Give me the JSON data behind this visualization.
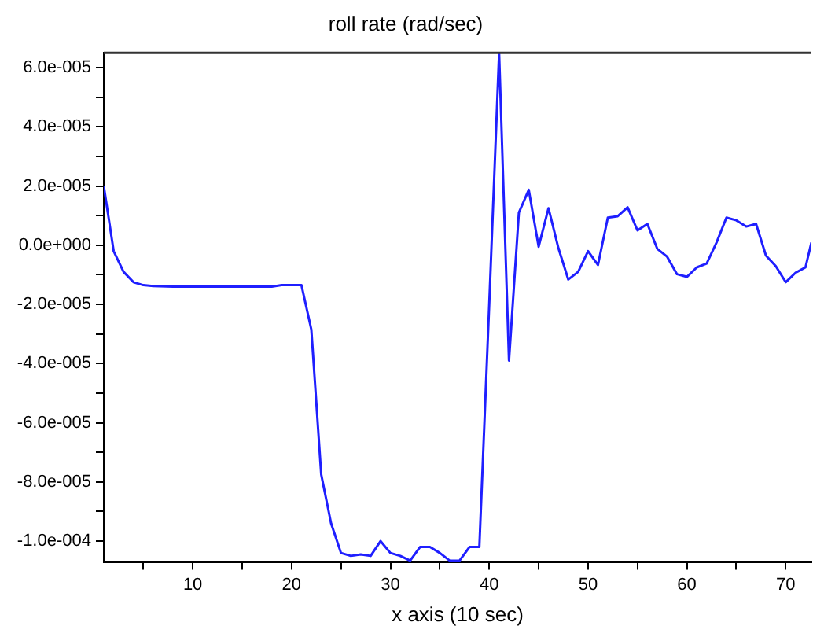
{
  "chart_data": {
    "type": "line",
    "title": "roll rate (rad/sec)",
    "xlabel": "x axis (10 sec)",
    "x": [
      1,
      2,
      3,
      4,
      5,
      6,
      8,
      10,
      12,
      14,
      16,
      18,
      19,
      20,
      21,
      22,
      23,
      24,
      25,
      26,
      27,
      28,
      29,
      30,
      31,
      32,
      33,
      34,
      35,
      36,
      37,
      38,
      39,
      40,
      41,
      42,
      43,
      44,
      45,
      46,
      47,
      48,
      49,
      50,
      51,
      52,
      53,
      54,
      55,
      56,
      57,
      58,
      59,
      60,
      61,
      62,
      63,
      64,
      65,
      66,
      67,
      68,
      69,
      70,
      71,
      72,
      72.6
    ],
    "series": [
      {
        "color": "#1f1fff",
        "values": [
          2e-05,
          -2e-06,
          -9e-06,
          -1.25e-05,
          -1.35e-05,
          -1.38e-05,
          -1.4e-05,
          -1.4e-05,
          -1.4e-05,
          -1.4e-05,
          -1.4e-05,
          -1.4e-05,
          -1.35e-05,
          -1.35e-05,
          -1.35e-05,
          -2.85e-05,
          -7.75e-05,
          -9.4e-05,
          -0.000104,
          -0.000105,
          -0.0001045,
          -0.000105,
          -0.0001,
          -0.000104,
          -0.000105,
          -0.0001066,
          -0.000102,
          -0.000102,
          -0.000104,
          -0.0001066,
          -0.0001066,
          -0.000102,
          -0.000102,
          -2e-05,
          6.5e-05,
          -3.9e-05,
          1.1e-05,
          1.87e-05,
          -5e-07,
          1.25e-05,
          -1e-06,
          -1.16e-05,
          -9e-06,
          -2e-06,
          -6.7e-06,
          9.3e-06,
          9.8e-06,
          1.28e-05,
          5e-06,
          7.2e-06,
          -1.2e-06,
          -3.9e-06,
          -9.8e-06,
          -1.07e-05,
          -7.5e-06,
          -6.2e-06,
          9e-07,
          9.3e-06,
          8.4e-06,
          6.3e-06,
          7.2e-06,
          -3.5e-06,
          -7.1e-06,
          -1.25e-05,
          -9.3e-06,
          -7.5e-06,
          9e-07
        ]
      }
    ],
    "xlim": [
      1,
      72.6
    ],
    "ylim": [
      -0.000107,
      6.5e-05
    ],
    "xticks": [
      {
        "value": 5,
        "label": null
      },
      10,
      {
        "value": 15,
        "label": null
      },
      20,
      {
        "value": 25,
        "label": null
      },
      30,
      {
        "value": 35,
        "label": null
      },
      40,
      {
        "value": 45,
        "label": null
      },
      50,
      {
        "value": 55,
        "label": null
      },
      60,
      {
        "value": 65,
        "label": null
      },
      70
    ],
    "yticks": [
      {
        "value": -0.0001,
        "label": "-1.0e-004"
      },
      {
        "value": -9e-05,
        "label": null
      },
      {
        "value": -8e-05,
        "label": "-8.0e-005"
      },
      {
        "value": -7e-05,
        "label": null
      },
      {
        "value": -6e-05,
        "label": "-6.0e-005"
      },
      {
        "value": -5e-05,
        "label": null
      },
      {
        "value": -4e-05,
        "label": "-4.0e-005"
      },
      {
        "value": -3e-05,
        "label": null
      },
      {
        "value": -2e-05,
        "label": "-2.0e-005"
      },
      {
        "value": -1e-05,
        "label": null
      },
      {
        "value": 0,
        "label": "0.0e+000"
      },
      {
        "value": 1e-05,
        "label": null
      },
      {
        "value": 2e-05,
        "label": "2.0e-005"
      },
      {
        "value": 3e-05,
        "label": null
      },
      {
        "value": 4e-05,
        "label": "4.0e-005"
      },
      {
        "value": 5e-05,
        "label": null
      },
      {
        "value": 6e-05,
        "label": "6.0e-005"
      }
    ],
    "grid": false,
    "legend": false,
    "line_style": "solid"
  }
}
